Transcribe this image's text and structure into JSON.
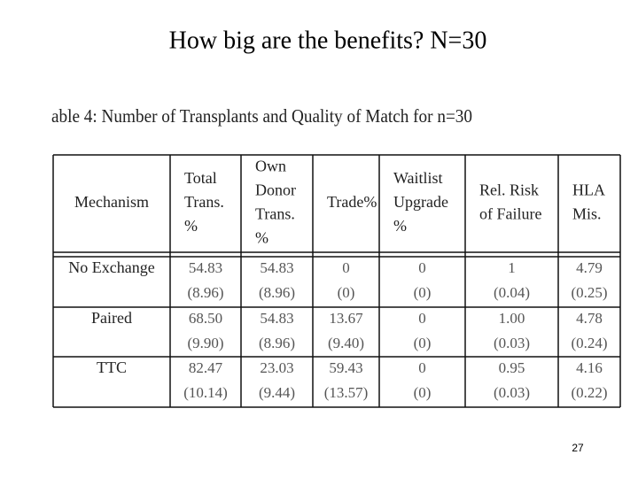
{
  "header": {
    "title": "How big are the benefits?  N=30"
  },
  "table": {
    "caption": "able 4: Number of Transplants and Quality of Match for n=30",
    "columns": [
      [
        "Mechanism"
      ],
      [
        "Total",
        "Trans.",
        "%"
      ],
      [
        "Own",
        "Donor",
        "Trans.",
        "%"
      ],
      [
        "Trade%"
      ],
      [
        "Waitlist",
        "Upgrade",
        "%"
      ],
      [
        "Rel. Risk",
        "of Failure"
      ],
      [
        "HLA",
        "Mis."
      ]
    ],
    "rows": [
      [
        [
          "No Exchange"
        ],
        [
          "54.83",
          "(8.96)"
        ],
        [
          "54.83",
          "(8.96)"
        ],
        [
          "0",
          "(0)"
        ],
        [
          "0",
          "(0)"
        ],
        [
          "1",
          "(0.04)"
        ],
        [
          "4.79",
          "(0.25)"
        ]
      ],
      [
        [
          "Paired"
        ],
        [
          "68.50",
          "(9.90)"
        ],
        [
          "54.83",
          "(8.96)"
        ],
        [
          "13.67",
          "(9.40)"
        ],
        [
          "0",
          "(0)"
        ],
        [
          "1.00",
          "(0.03)"
        ],
        [
          "4.78",
          "(0.24)"
        ]
      ],
      [
        [
          "TTC"
        ],
        [
          "82.47",
          "(10.14)"
        ],
        [
          "23.03",
          "(9.44)"
        ],
        [
          "59.43",
          "(13.57)"
        ],
        [
          "0",
          "(0)"
        ],
        [
          "0.95",
          "(0.03)"
        ],
        [
          "4.16",
          "(0.22)"
        ]
      ]
    ]
  },
  "footer": {
    "page_number": "27"
  }
}
